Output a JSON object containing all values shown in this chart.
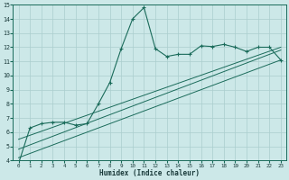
{
  "xlabel": "Humidex (Indice chaleur)",
  "bg_color": "#cce8e8",
  "grid_color": "#aacece",
  "line_color": "#1a6b5a",
  "xlim": [
    -0.5,
    23.5
  ],
  "ylim": [
    4,
    15
  ],
  "xticks": [
    0,
    1,
    2,
    3,
    4,
    5,
    6,
    7,
    8,
    9,
    10,
    11,
    12,
    13,
    14,
    15,
    16,
    17,
    18,
    19,
    20,
    21,
    22,
    23
  ],
  "yticks": [
    4,
    5,
    6,
    7,
    8,
    9,
    10,
    11,
    12,
    13,
    14,
    15
  ],
  "series_main_x": [
    0,
    1,
    2,
    3,
    4,
    5,
    6,
    7,
    8,
    9,
    10,
    11,
    12,
    13,
    14,
    15,
    16,
    17,
    18,
    19,
    20,
    21,
    22,
    23
  ],
  "series_main_y": [
    3.8,
    6.3,
    6.6,
    6.7,
    6.7,
    6.5,
    6.6,
    8.0,
    9.5,
    11.9,
    14.0,
    14.8,
    11.9,
    11.35,
    11.5,
    11.5,
    12.1,
    12.05,
    12.2,
    12.0,
    11.7,
    12.0,
    12.0,
    11.1
  ],
  "line2_x": [
    0,
    23
  ],
  "line2_y": [
    4.2,
    11.1
  ],
  "line3_x": [
    0,
    23
  ],
  "line3_y": [
    4.8,
    11.8
  ],
  "line4_x": [
    0,
    23
  ],
  "line4_y": [
    5.5,
    12.0
  ]
}
